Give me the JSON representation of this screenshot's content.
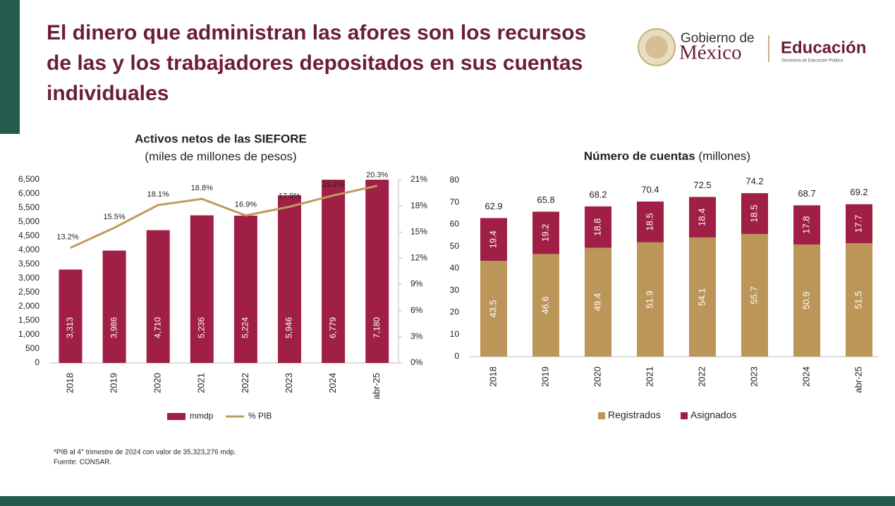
{
  "slide_title": "El dinero que administran las afores son los recursos de las y los trabajadores depositados en sus cuentas individuales",
  "logo": {
    "line1": "Gobierno de",
    "line2": "México",
    "dept": "Educación",
    "dept_sub": "Secretaría de Educación Pública"
  },
  "footnotes": [
    "*PIB al 4° trimestre de 2024 con valor de 35,323,276 mdp.",
    "Fuente: CONSAR."
  ],
  "chart_data": [
    {
      "type": "bar",
      "title": "Activos netos de las SIEFORE",
      "subtitle": "(miles de millones de pesos)",
      "categories": [
        "2018",
        "2019",
        "2020",
        "2021",
        "2022",
        "2023",
        "2024",
        "abr-25"
      ],
      "series": [
        {
          "name": "mmdp",
          "color": "#a01f45",
          "values": [
            3313,
            3986,
            4710,
            5236,
            5224,
            5946,
            6779,
            7180
          ],
          "value_labels": [
            "3,313",
            "3,986",
            "4,710",
            "5,236",
            "5,224",
            "5,946",
            "6,779",
            "7,180"
          ]
        },
        {
          "name": "% PIB",
          "color": "#c09a5f",
          "type": "line",
          "axis": "y2",
          "values": [
            13.2,
            15.5,
            18.1,
            18.8,
            16.9,
            17.9,
            19.2,
            20.3
          ],
          "value_labels": [
            "13.2%",
            "15.5%",
            "18.1%",
            "18.8%",
            "16.9%",
            "17.9%",
            "19.2%",
            "20.3%"
          ]
        }
      ],
      "ylim": [
        0,
        6500
      ],
      "yticks": [
        0,
        500,
        {
          "value": 1000,
          "label": "1,000"
        },
        {
          "value": 1500,
          "label": "1,500"
        },
        {
          "value": 2000,
          "label": "2,000"
        },
        {
          "value": 2500,
          "label": "2,500"
        },
        {
          "value": 3000,
          "label": "3,000"
        },
        {
          "value": 3500,
          "label": "3,500"
        },
        {
          "value": 4000,
          "label": "4,000"
        },
        {
          "value": 4500,
          "label": "4,500"
        },
        {
          "value": 5000,
          "label": "5,000"
        },
        {
          "value": 5500,
          "label": "5,500"
        },
        {
          "value": 6000,
          "label": "6,000"
        },
        {
          "value": 6500,
          "label": "6,500"
        }
      ],
      "y2lim": [
        0,
        21
      ],
      "y2ticks": [
        {
          "value": 0,
          "label": "0%"
        },
        {
          "value": 3,
          "label": "3%"
        },
        {
          "value": 6,
          "label": "6%"
        },
        {
          "value": 9,
          "label": "9%"
        },
        {
          "value": 12,
          "label": "12%"
        },
        {
          "value": 15,
          "label": "15%"
        },
        {
          "value": 18,
          "label": "18%"
        },
        {
          "value": 21,
          "label": "21%"
        }
      ],
      "legend": "bottom"
    },
    {
      "type": "stacked_bar",
      "title": "Número de cuentas",
      "subtitle": "(millones)",
      "categories": [
        "2018",
        "2019",
        "2020",
        "2021",
        "2022",
        "2023",
        "2024",
        "abr-25"
      ],
      "series": [
        {
          "name": "Registrados",
          "color": "#bc9559",
          "values": [
            43.5,
            46.6,
            49.4,
            51.9,
            54.1,
            55.7,
            50.9,
            51.5
          ]
        },
        {
          "name": "Asignados",
          "color": "#a01f45",
          "values": [
            19.4,
            19.2,
            18.8,
            18.5,
            18.4,
            18.5,
            17.8,
            17.7
          ]
        }
      ],
      "totals": [
        62.9,
        65.8,
        68.2,
        70.4,
        72.5,
        74.2,
        68.7,
        69.2
      ],
      "ylim": [
        0,
        80
      ],
      "yticks": [
        0,
        10,
        20,
        30,
        40,
        50,
        60,
        70,
        80
      ],
      "legend": "bottom"
    }
  ]
}
